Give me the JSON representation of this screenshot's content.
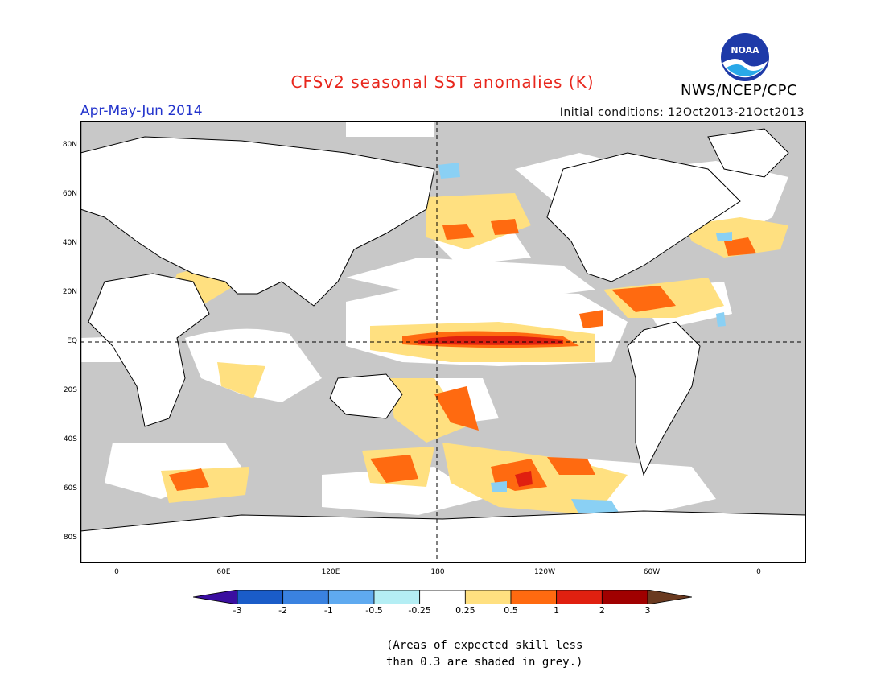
{
  "header": {
    "title": "CFSv2 seasonal SST anomalies (K)",
    "agency": "NWS/NCEP/CPC",
    "logo_text": "NOAA",
    "season": "Apr-May-Jun 2014",
    "initial_conditions": "Initial conditions: 12Oct2013-21Oct2013"
  },
  "axes": {
    "y_ticks": [
      "80N",
      "60N",
      "40N",
      "20N",
      "EQ",
      "20S",
      "40S",
      "60S",
      "80S"
    ],
    "x_ticks": [
      "0",
      "60E",
      "120E",
      "180",
      "120W",
      "60W",
      "0"
    ]
  },
  "colorbar": {
    "labels": [
      "-3",
      "-2",
      "-1",
      "-0.5",
      "-0.25",
      "0.25",
      "0.5",
      "1",
      "2",
      "3"
    ],
    "colors": [
      "#3a0ea0",
      "#1a5cc8",
      "#3a82e0",
      "#5faaf0",
      "#b4eef4",
      "#ffffff",
      "#ffe080",
      "#ff6a10",
      "#e02010",
      "#a00000",
      "#6a3a20"
    ]
  },
  "footnote": {
    "line1": "(Areas of expected skill less",
    "line2": "than 0.3 are shaded in grey.)"
  },
  "colors": {
    "grey_mask": "#c8c8c8",
    "title": "#e8261c",
    "season": "#2233cc"
  }
}
